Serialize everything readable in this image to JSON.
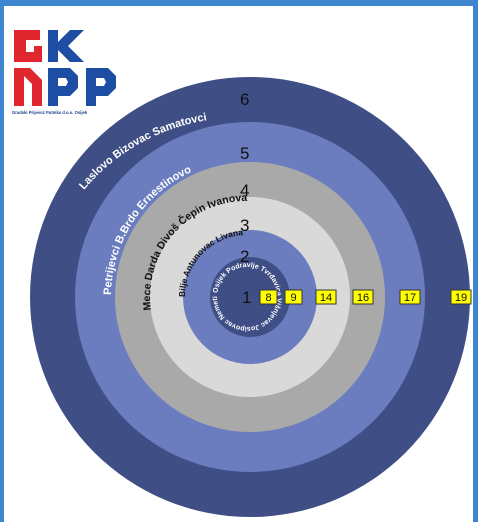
{
  "logo": {
    "letters": "GKPP",
    "caption": "Gradski Prijevoz Putnika d.o.o. Osijek",
    "colors": {
      "red": "#e0262f",
      "blue": "#1d4ea3"
    }
  },
  "zones": [
    {
      "number": "1",
      "label": "Osijek Podravlje Tvrđavica Višnjevac Josipovac Nemetin Sarvaš Briješće",
      "color": "#3f4f86"
    },
    {
      "number": "2",
      "label": "Bilje Antunovac Livana",
      "color": "#6b7dbf"
    },
    {
      "number": "3",
      "label": "Mece Darda Divoš Čepin Ivanovac",
      "color": "#d9d9d9"
    },
    {
      "number": "4",
      "label": "Petrijevci B.Brdo Ernestinovo",
      "color": "#a9a9a9"
    },
    {
      "number": "5",
      "label": "Laslovo Bizovac Samatovci",
      "color": "#6b7dbf"
    },
    {
      "number": "6",
      "label": "",
      "color": "#3f4f86"
    }
  ],
  "zone_labels": {
    "z1": "Osijek Podravlje Tvrđavica Višnjevac Josipovac Nemetin Sarvaš Briješće",
    "z2": "Bilje Antunovac Livana",
    "z3": "Mece Darda Divoš Čepin Ivanovac",
    "z4": "Petrijevci B.Brdo Ernestinovo",
    "z5": "Laslovo Bizovac Samatovci"
  },
  "numbers": {
    "n1": "1",
    "n2": "2",
    "n3": "3",
    "n4": "4",
    "n5": "5",
    "n6": "6"
  },
  "prices": [
    "8",
    "9",
    "14",
    "16",
    "17",
    "19"
  ],
  "colors": {
    "border": "#3d86cf",
    "badge": "#ffff00"
  }
}
